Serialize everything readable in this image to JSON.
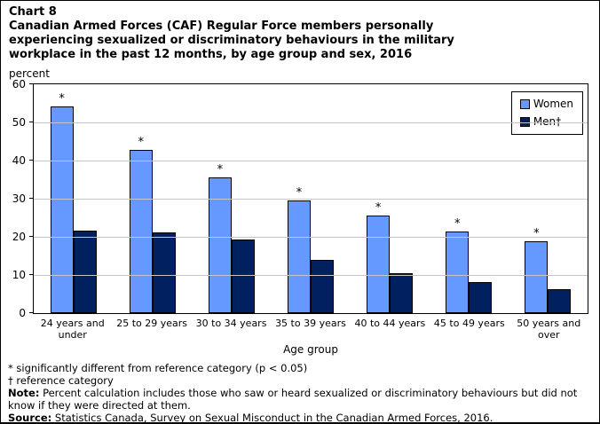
{
  "header": {
    "chart_label": "Chart 8",
    "title_lines": [
      "Canadian Armed Forces (CAF) Regular Force members personally",
      "experiencing sexualized or discriminatory behaviours in the military",
      "workplace in the past 12 months, by age group and sex, 2016"
    ],
    "unit_label": "percent"
  },
  "chart_data": {
    "type": "bar",
    "title": "Canadian Armed Forces (CAF) Regular Force members personally experiencing sexualized or discriminatory behaviours in the military workplace in the past 12 months, by age group and sex, 2016",
    "categories": [
      "24 years and under",
      "25 to 29 years",
      "30 to 34 years",
      "35 to 39 years",
      "40 to 44 years",
      "45 to 49 years",
      "50 years and over"
    ],
    "series": [
      {
        "name": "Women",
        "color": "#6699FF",
        "values": [
          54.1,
          42.9,
          35.6,
          29.6,
          25.5,
          21.4,
          18.9
        ],
        "point_labels": [
          "*",
          "*",
          "*",
          "*",
          "*",
          "*",
          "*"
        ]
      },
      {
        "name": "Men†",
        "color": "#002060",
        "values": [
          21.7,
          21.2,
          19.4,
          13.9,
          10.4,
          8.2,
          6.3
        ],
        "point_labels": [
          "",
          "",
          "",
          "",
          "",
          "",
          ""
        ]
      }
    ],
    "xlabel": "Age group",
    "ylabel": "percent",
    "ylim": [
      0,
      60
    ],
    "ytick_interval": 10,
    "grid": true,
    "gridline_color": "#c6c6c6",
    "legend_position": "top-right"
  },
  "legend": {
    "items": [
      {
        "label": "Women",
        "color": "#6699FF"
      },
      {
        "label": "Men†",
        "color": "#002060"
      }
    ]
  },
  "footnotes": {
    "sig": "* significantly different from reference category (p < 0.05)",
    "ref": "† reference category",
    "note_label": "Note:",
    "note_text": " Percent calculation includes those who saw or heard sexualized or discriminatory behaviours but did not know if they were directed at them.",
    "source_label": "Source:",
    "source_text": " Statistics Canada, Survey on Sexual Misconduct in the Canadian Armed Forces, 2016."
  }
}
